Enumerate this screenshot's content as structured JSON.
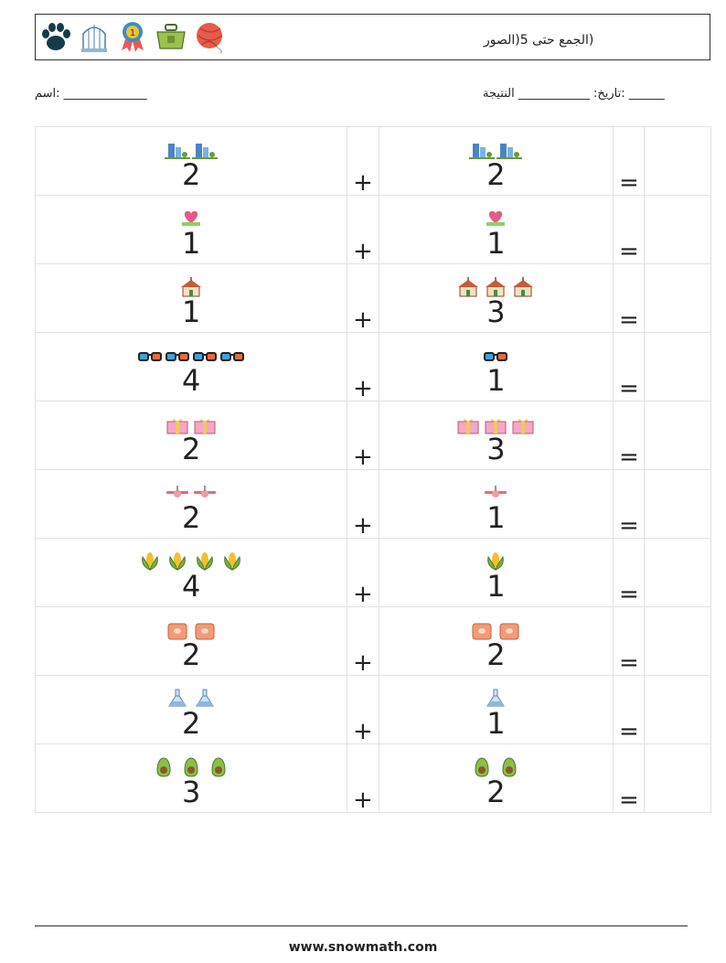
{
  "header": {
    "title": "(الجمع حتى 5(الصور",
    "icons": [
      "paw-icon",
      "birdcage-icon",
      "medal-icon",
      "toolbox-icon",
      "yarn-ball-icon"
    ]
  },
  "info": {
    "date_line": "______ :تاريخ: ____________ النتيجة",
    "name_line": "______________ :اسم"
  },
  "operators": {
    "plus": "+",
    "equals": "="
  },
  "problems": [
    {
      "left": {
        "count": 2,
        "icon": "office-buildings-icon"
      },
      "right": {
        "count": 2,
        "icon": "office-buildings-icon"
      }
    },
    {
      "left": {
        "count": 1,
        "icon": "heart-sign-icon"
      },
      "right": {
        "count": 1,
        "icon": "heart-sign-icon"
      }
    },
    {
      "left": {
        "count": 1,
        "icon": "church-icon"
      },
      "right": {
        "count": 3,
        "icon": "church-icon"
      }
    },
    {
      "left": {
        "count": 4,
        "icon": "3d-glasses-icon"
      },
      "right": {
        "count": 1,
        "icon": "3d-glasses-icon"
      }
    },
    {
      "left": {
        "count": 2,
        "icon": "gift-box-icon"
      },
      "right": {
        "count": 3,
        "icon": "gift-box-icon"
      }
    },
    {
      "left": {
        "count": 2,
        "icon": "airplane-icon"
      },
      "right": {
        "count": 1,
        "icon": "airplane-icon"
      }
    },
    {
      "left": {
        "count": 4,
        "icon": "corn-icon"
      },
      "right": {
        "count": 1,
        "icon": "corn-icon"
      }
    },
    {
      "left": {
        "count": 2,
        "icon": "seed-bag-icon"
      },
      "right": {
        "count": 2,
        "icon": "seed-bag-icon"
      }
    },
    {
      "left": {
        "count": 2,
        "icon": "lab-flask-icon"
      },
      "right": {
        "count": 1,
        "icon": "lab-flask-icon"
      }
    },
    {
      "left": {
        "count": 3,
        "icon": "avocado-icon"
      },
      "right": {
        "count": 2,
        "icon": "avocado-icon"
      }
    }
  ],
  "footer": {
    "url": "www.snowmath.com"
  }
}
